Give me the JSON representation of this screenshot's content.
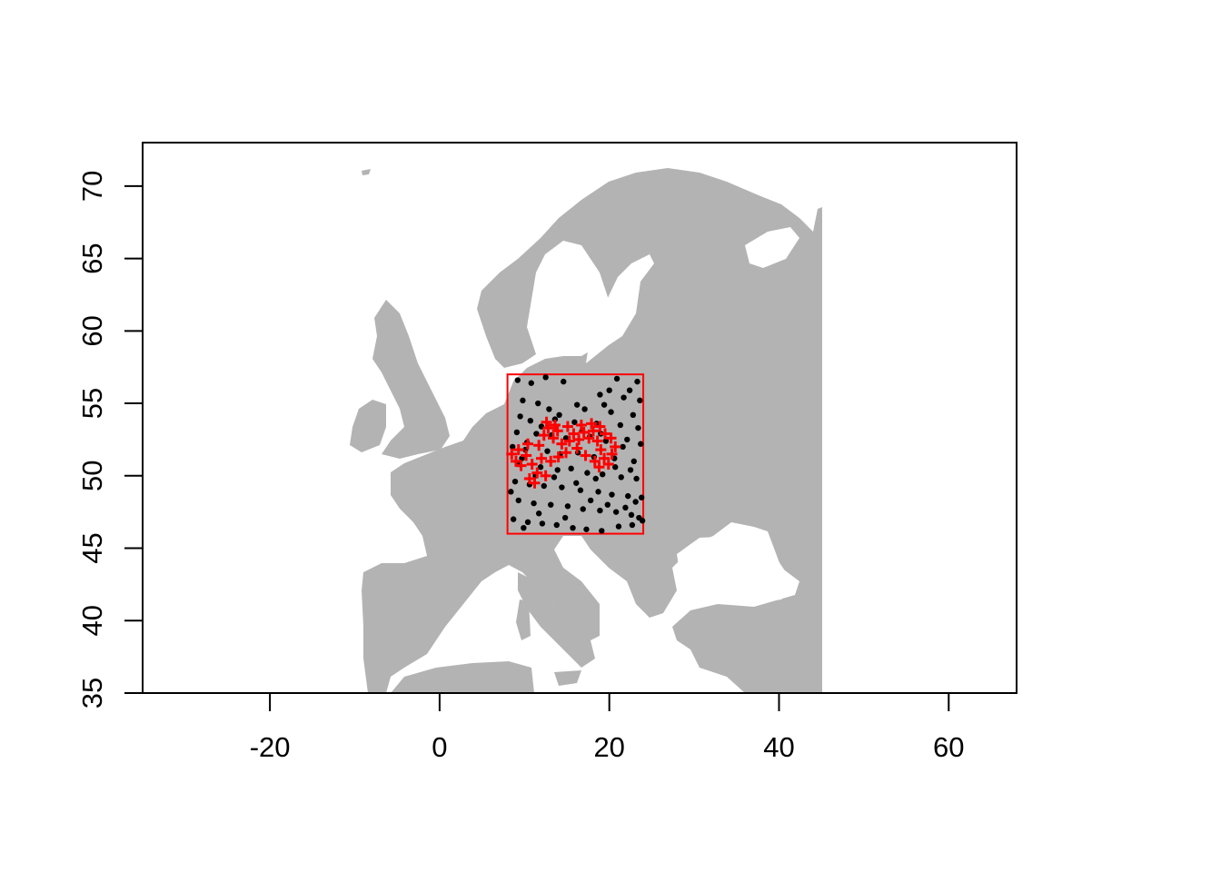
{
  "chart_data": {
    "type": "scatter",
    "title": "",
    "xlabel": "",
    "ylabel": "",
    "xlim": [
      -35,
      68
    ],
    "ylim": [
      35,
      73
    ],
    "x_ticks": [
      -20,
      0,
      20,
      40,
      60
    ],
    "x_tick_labels": [
      "-20",
      "0",
      "20",
      "40",
      "60"
    ],
    "y_ticks": [
      35,
      40,
      45,
      50,
      55,
      60,
      65,
      70
    ],
    "y_tick_labels": [
      "35",
      "40",
      "45",
      "50",
      "55",
      "60",
      "65",
      "70"
    ],
    "grid": false,
    "basemap": {
      "name": "Europe land",
      "land_color": "#b3b3b3",
      "lon_range": [
        -25,
        45
      ],
      "lat_range": [
        35,
        71
      ]
    },
    "study_area": {
      "xmin": 8,
      "xmax": 24,
      "ymin": 46,
      "ymax": 57,
      "color": "#ff0000"
    },
    "series": [
      {
        "marker": "filled-circle",
        "color": "#000000",
        "points": [
          [
            9.2,
            56.6
          ],
          [
            10.8,
            56.4
          ],
          [
            12.5,
            56.8
          ],
          [
            14.6,
            56.5
          ],
          [
            20.9,
            56.7
          ],
          [
            23.3,
            56.5
          ],
          [
            22.4,
            55.9
          ],
          [
            21.7,
            55.4
          ],
          [
            23.6,
            55.2
          ],
          [
            19.4,
            54.9
          ],
          [
            17.1,
            54.6
          ],
          [
            20.2,
            54.4
          ],
          [
            22.8,
            54.2
          ],
          [
            9.5,
            54.1
          ],
          [
            10.7,
            53.8
          ],
          [
            13.6,
            53.9
          ],
          [
            15.9,
            53.7
          ],
          [
            18.5,
            53.6
          ],
          [
            21.3,
            53.5
          ],
          [
            23.4,
            53.3
          ],
          [
            9.1,
            53.0
          ],
          [
            11.4,
            52.9
          ],
          [
            13.2,
            52.8
          ],
          [
            14.9,
            52.6
          ],
          [
            17.7,
            52.7
          ],
          [
            19.6,
            52.4
          ],
          [
            22.1,
            52.5
          ],
          [
            23.7,
            52.2
          ],
          [
            8.6,
            52.0
          ],
          [
            10.1,
            51.8
          ],
          [
            12.7,
            51.7
          ],
          [
            14.2,
            51.5
          ],
          [
            16.3,
            51.6
          ],
          [
            18.2,
            51.3
          ],
          [
            20.6,
            51.2
          ],
          [
            22.9,
            51.0
          ],
          [
            9.4,
            50.8
          ],
          [
            11.9,
            50.6
          ],
          [
            13.9,
            50.4
          ],
          [
            15.5,
            50.5
          ],
          [
            17.4,
            50.2
          ],
          [
            19.2,
            50.1
          ],
          [
            21.4,
            49.9
          ],
          [
            23.2,
            49.8
          ],
          [
            8.9,
            49.6
          ],
          [
            10.6,
            49.4
          ],
          [
            12.3,
            49.3
          ],
          [
            14.4,
            49.2
          ],
          [
            16.6,
            49.0
          ],
          [
            18.7,
            48.9
          ],
          [
            20.3,
            48.7
          ],
          [
            22.2,
            48.6
          ],
          [
            23.8,
            48.5
          ],
          [
            9.3,
            48.3
          ],
          [
            11.1,
            48.1
          ],
          [
            13.1,
            48.0
          ],
          [
            15.1,
            47.9
          ],
          [
            16.9,
            47.7
          ],
          [
            18.9,
            47.6
          ],
          [
            20.8,
            47.5
          ],
          [
            22.6,
            47.3
          ],
          [
            23.5,
            47.1
          ],
          [
            8.7,
            47.0
          ],
          [
            10.4,
            46.8
          ],
          [
            12.1,
            46.7
          ],
          [
            13.8,
            46.6
          ],
          [
            15.7,
            46.4
          ],
          [
            17.3,
            46.3
          ],
          [
            19.1,
            46.2
          ],
          [
            21.1,
            46.5
          ],
          [
            22.7,
            46.6
          ],
          [
            23.9,
            46.9
          ],
          [
            9.8,
            55.2
          ],
          [
            11.6,
            55.0
          ],
          [
            12.9,
            54.6
          ],
          [
            18.9,
            55.6
          ],
          [
            20.0,
            55.9
          ],
          [
            16.2,
            54.9
          ],
          [
            14.1,
            54.2
          ],
          [
            12.0,
            53.4
          ],
          [
            10.3,
            52.3
          ],
          [
            16.8,
            53.1
          ],
          [
            19.0,
            52.9
          ],
          [
            21.6,
            52.0
          ],
          [
            22.5,
            50.4
          ],
          [
            20.7,
            50.6
          ],
          [
            18.4,
            49.8
          ],
          [
            16.1,
            49.5
          ],
          [
            13.5,
            49.9
          ],
          [
            11.3,
            50.0
          ],
          [
            9.7,
            51.2
          ],
          [
            8.4,
            48.9
          ],
          [
            11.7,
            47.4
          ],
          [
            14.8,
            47.1
          ],
          [
            17.8,
            48.3
          ],
          [
            19.8,
            48.0
          ],
          [
            21.9,
            47.8
          ],
          [
            23.1,
            48.2
          ],
          [
            9.9,
            46.4
          ]
        ]
      },
      {
        "marker": "plus",
        "color": "#ff0000",
        "points": [
          [
            9.0,
            51.0
          ],
          [
            9.6,
            50.7
          ],
          [
            10.2,
            51.4
          ],
          [
            10.9,
            50.8
          ],
          [
            11.5,
            50.2
          ],
          [
            12.0,
            51.2
          ],
          [
            11.7,
            52.1
          ],
          [
            12.3,
            52.8
          ],
          [
            12.8,
            53.3
          ],
          [
            13.4,
            52.6
          ],
          [
            13.9,
            53.1
          ],
          [
            14.4,
            52.2
          ],
          [
            14.9,
            51.6
          ],
          [
            15.3,
            52.4
          ],
          [
            15.8,
            52.9
          ],
          [
            16.4,
            52.5
          ],
          [
            17.0,
            53.0
          ],
          [
            17.6,
            52.6
          ],
          [
            18.1,
            53.1
          ],
          [
            18.6,
            52.4
          ],
          [
            19.0,
            51.8
          ],
          [
            19.4,
            51.2
          ],
          [
            19.9,
            50.8
          ],
          [
            20.3,
            51.5
          ],
          [
            20.7,
            52.0
          ],
          [
            20.2,
            52.6
          ],
          [
            19.5,
            52.9
          ],
          [
            10.6,
            49.8
          ],
          [
            11.2,
            49.5
          ],
          [
            12.5,
            50.0
          ],
          [
            13.1,
            51.0
          ],
          [
            14.0,
            51.3
          ],
          [
            16.2,
            51.9
          ],
          [
            17.2,
            51.4
          ],
          [
            18.3,
            51.0
          ],
          [
            18.8,
            50.6
          ],
          [
            8.5,
            51.5
          ],
          [
            9.3,
            51.8
          ],
          [
            10.4,
            52.2
          ],
          [
            12.6,
            53.7
          ],
          [
            13.6,
            53.5
          ],
          [
            15.1,
            53.4
          ],
          [
            16.7,
            53.5
          ],
          [
            17.9,
            53.6
          ],
          [
            18.9,
            53.4
          ]
        ]
      }
    ]
  }
}
